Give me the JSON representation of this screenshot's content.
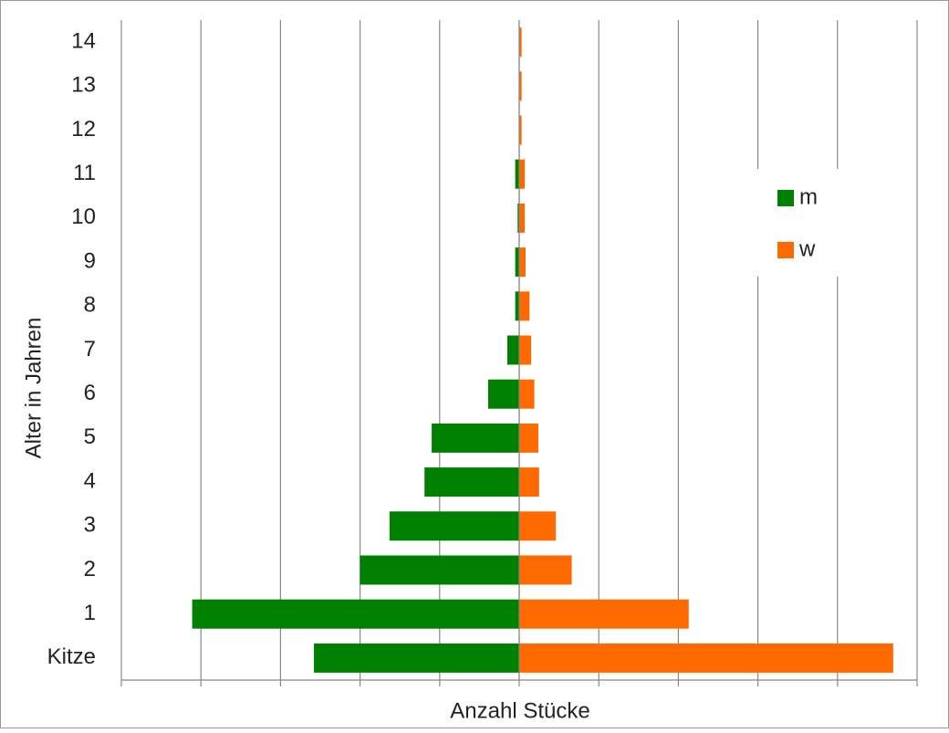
{
  "chart_data": {
    "type": "pyramid",
    "x_label": "Anzahl Stücke",
    "y_label": "Alter in Jahren",
    "categories": [
      "Kitze",
      "1",
      "2",
      "3",
      "4",
      "5",
      "6",
      "7",
      "8",
      "9",
      "10",
      "11",
      "12",
      "13",
      "14"
    ],
    "series": [
      {
        "name": "m",
        "color": "#008000",
        "values": [
          -2.58,
          -4.11,
          -2.0,
          -1.63,
          -1.19,
          -1.1,
          -0.39,
          -0.15,
          -0.05,
          -0.05,
          -0.02,
          -0.05,
          0,
          0,
          0
        ]
      },
      {
        "name": "w",
        "color": "#ff6a00",
        "values": [
          4.7,
          2.13,
          0.66,
          0.46,
          0.25,
          0.24,
          0.19,
          0.15,
          0.13,
          0.08,
          0.07,
          0.07,
          0.03,
          0.03,
          0.03
        ]
      }
    ],
    "xlim": [
      -5,
      5
    ],
    "xticks": [
      -5,
      -4,
      -3,
      -2,
      -1,
      0,
      1,
      2,
      3,
      4,
      5
    ],
    "grid": true,
    "legend": "right"
  }
}
